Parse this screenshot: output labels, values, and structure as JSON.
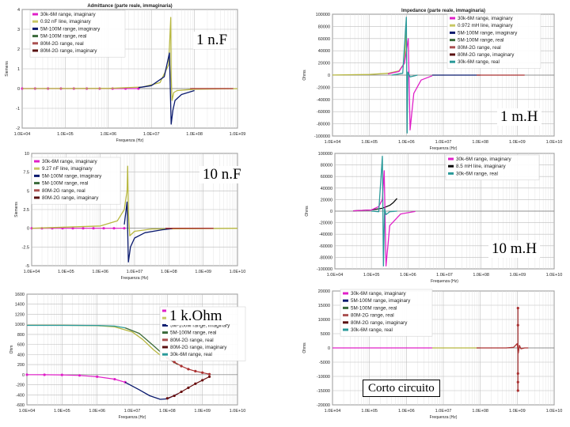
{
  "labels": {
    "cap1": "1 n.F",
    "ind1": "1 m.H",
    "cap10": "10 n.F",
    "ind10": "10 m.H",
    "res1k": "1 k.Ohm",
    "short": "Corto circuito"
  },
  "chart_data": [
    {
      "id": "c1",
      "type": "line",
      "title": "Admittance (parte reale, immaginaria)",
      "xlabel": "Frequenza (Hz)",
      "ylabel": "Siemens",
      "xticks": [
        "1.0E+04",
        "1.0E+05",
        "1.0E+06",
        "1.0E+07",
        "1.0E+08",
        "1.0E+09"
      ],
      "xlog": [
        4,
        9
      ],
      "yticks": [
        "4",
        "3",
        "2",
        "1",
        "0",
        "-1",
        "-2"
      ],
      "ylim": [
        -2,
        4
      ],
      "legend": [
        "30k-6M range, imaginary",
        "0.92 nF line, imaginary",
        "5M-100M range, imaginary",
        "5M-100M range, real",
        "80M-2G range, real",
        "80M-2G range, imaginary"
      ],
      "legend_colors": [
        "#e020c8",
        "#c8c864",
        "#0a1a6e",
        "#3a6a3a",
        "#aa5050",
        "#5a1010"
      ],
      "series": [
        {
          "name": "30k-6M range, imaginary",
          "color": "#e020c8",
          "shape": "dots",
          "x": [
            4,
            4.3,
            4.6,
            4.9,
            5.2,
            5.5,
            5.8,
            6.1,
            6.4,
            6.7
          ],
          "y": [
            0,
            0,
            0,
            0,
            0,
            0,
            0,
            0,
            0,
            0
          ]
        },
        {
          "name": "0.92 nF line, imaginary",
          "color": "#b8b840",
          "x": [
            4,
            6,
            6.8,
            7.2,
            7.4,
            7.45,
            7.46,
            7.48,
            7.52,
            7.6,
            8,
            9
          ],
          "y": [
            0,
            0.01,
            0.08,
            0.3,
            1.2,
            3.6,
            0.6,
            -0.6,
            -0.2,
            -0.1,
            -0.03,
            -0.005
          ]
        },
        {
          "name": "5M-100M range, imaginary",
          "color": "#0a1a6e",
          "x": [
            6.7,
            7,
            7.3,
            7.42,
            7.46,
            7.5,
            7.55,
            7.7,
            8
          ],
          "y": [
            0.05,
            0.15,
            0.6,
            1.8,
            -1.8,
            -1.1,
            -0.6,
            -0.3,
            -0.1
          ]
        },
        {
          "name": "80M-2G range, real",
          "color": "#aa3030",
          "x": [
            7.9,
            8.1,
            8.3,
            8.5,
            8.7,
            8.9
          ],
          "y": [
            0,
            0,
            0,
            0,
            0,
            0
          ]
        }
      ]
    },
    {
      "id": "c2",
      "type": "line",
      "title": "Impedance (parte reale, immaginaria)",
      "xlabel": "Frequenza (Hz)",
      "ylabel": "Ohms",
      "xticks": [
        "1.0E+04",
        "1.0E+05",
        "1.0E+06",
        "1.0E+07",
        "1.0E+08",
        "1.0E+09",
        "1.0E+10"
      ],
      "xlog": [
        4,
        10
      ],
      "yticks": [
        "100000",
        "80000",
        "60000",
        "40000",
        "20000",
        "0",
        "-20000",
        "-40000",
        "-60000",
        "-80000",
        "-100000"
      ],
      "ylim": [
        -100000,
        100000
      ],
      "legend": [
        "30k-6M range, imaginary",
        "0.972 mH line, imaginary",
        "5M-100M range, imaginary",
        "5M-100M range, real",
        "80M-2G range, real",
        "80M-2G range, imaginary",
        "30k-6M range, real"
      ],
      "legend_colors": [
        "#e020c8",
        "#c8c864",
        "#0a1a6e",
        "#3a6a3a",
        "#aa5050",
        "#5a1010",
        "#2a9a9a"
      ],
      "series": [
        {
          "name": "0.972 mH line, imaginary",
          "color": "#b8b840",
          "x": [
            4,
            5,
            5.5,
            5.8,
            5.95,
            6
          ],
          "y": [
            100,
            1000,
            3000,
            7000,
            20000,
            80000
          ]
        },
        {
          "name": "30k-6M range, imaginary",
          "color": "#e020c8",
          "x": [
            5.5,
            5.8,
            5.95,
            6.05,
            6.1,
            6.2,
            6.4,
            6.7
          ],
          "y": [
            2000,
            6000,
            20000,
            60000,
            -90000,
            -30000,
            -8000,
            -1000
          ]
        },
        {
          "name": "30k-6M range, real",
          "color": "#2a9a9a",
          "x": [
            5.6,
            5.9,
            6,
            6.02,
            6.04,
            6.1,
            6.3
          ],
          "y": [
            0,
            3000,
            95000,
            -95000,
            5000,
            -3000,
            0
          ]
        },
        {
          "name": "5M-100M range, imaginary",
          "color": "#0a1a6e",
          "x": [
            6.7,
            7,
            7.5,
            8
          ],
          "y": [
            0,
            0,
            0,
            0
          ]
        },
        {
          "name": "80M-2G range, real",
          "color": "#aa3030",
          "x": [
            7.9,
            8.2,
            8.5,
            8.8,
            9.2
          ],
          "y": [
            0,
            0,
            0,
            0,
            0
          ]
        }
      ]
    },
    {
      "id": "c3",
      "type": "line",
      "title": "",
      "xlabel": "Frequenza (Hz)",
      "ylabel": "Siemens",
      "xticks": [
        "1.0E+04",
        "1.0E+05",
        "1.0E+06",
        "1.0E+07",
        "1.0E+08",
        "1.0E+09",
        "1.0E+10"
      ],
      "xlog": [
        4,
        10
      ],
      "yticks": [
        "10",
        "7.5",
        "5",
        "2.5",
        "0",
        "-2.5",
        "-5"
      ],
      "ylim": [
        -5,
        10
      ],
      "legend": [
        "30k-6M range, imaginary",
        "9.27 nF line, imaginary",
        "5M-100M range, imaginary",
        "5M-100M range, real",
        "80M-2G range, real",
        "80M-2G range, imaginary"
      ],
      "legend_colors": [
        "#e020c8",
        "#c8c864",
        "#0a1a6e",
        "#3a6a3a",
        "#aa5050",
        "#5a1010"
      ],
      "series": [
        {
          "name": "30k-6M range, imaginary",
          "color": "#e020c8",
          "shape": "dots",
          "x": [
            4,
            4.3,
            4.6,
            4.9,
            5.2,
            5.5,
            5.8,
            6.1,
            6.4,
            6.7
          ],
          "y": [
            0,
            0,
            0,
            0,
            0,
            0,
            0,
            0,
            0,
            0
          ]
        },
        {
          "name": "9.27 nF line, imaginary",
          "color": "#b8b840",
          "x": [
            4,
            6,
            6.5,
            6.7,
            6.78,
            6.8,
            6.82,
            6.86,
            7,
            7.5,
            10
          ],
          "y": [
            0,
            0.3,
            1,
            2.5,
            5,
            8.3,
            2,
            -1,
            -0.4,
            -0.1,
            0
          ]
        },
        {
          "name": "5M-100M range, imaginary",
          "color": "#0a1a6e",
          "x": [
            6.7,
            6.78,
            6.82,
            6.88,
            7,
            7.3,
            7.8,
            8.1
          ],
          "y": [
            0.5,
            3.5,
            -4.5,
            -2.5,
            -1.3,
            -0.6,
            -0.2,
            -0.05
          ]
        },
        {
          "name": "80M-2G range, real",
          "color": "#aa3030",
          "x": [
            7.9,
            8.2,
            8.5,
            8.8,
            9.1,
            9.3
          ],
          "y": [
            0,
            0,
            0,
            0,
            0,
            0
          ]
        }
      ]
    },
    {
      "id": "c4",
      "type": "line",
      "title": "",
      "xlabel": "Frequenza (Hz)",
      "ylabel": "Ohms",
      "xticks": [
        "1.0E+04",
        "1.0E+05",
        "1.0E+06",
        "1.0E+07",
        "1.0E+08",
        "1.0E+09",
        "1.0E+10"
      ],
      "xlog": [
        4,
        10
      ],
      "yticks": [
        "100000",
        "80000",
        "60000",
        "40000",
        "20000",
        "0",
        "-20000",
        "-40000",
        "-60000",
        "-80000",
        "-100000"
      ],
      "ylim": [
        -100000,
        100000
      ],
      "legend": [
        "30k-6M range, imaginary",
        "8.5 mH line, imaginary",
        "30k-6M range, real"
      ],
      "legend_colors": [
        "#e020c8",
        "#0a0a0a",
        "#2a9a9a"
      ],
      "series": [
        {
          "name": "8.5 mH line, imaginary",
          "color": "#0a0a0a",
          "x": [
            4.5,
            5,
            5.3,
            5.5,
            5.6,
            5.7
          ],
          "y": [
            500,
            2000,
            5000,
            10000,
            15000,
            22000
          ]
        },
        {
          "name": "30k-6M range, imaginary",
          "color": "#e020c8",
          "x": [
            4.5,
            5,
            5.2,
            5.3,
            5.35,
            5.4,
            5.5,
            5.8,
            6.2
          ],
          "y": [
            500,
            2000,
            8000,
            20000,
            70000,
            -95000,
            -25000,
            -5000,
            -500
          ]
        },
        {
          "name": "30k-6M range, real",
          "color": "#2a9a9a",
          "x": [
            5,
            5.2,
            5.3,
            5.33,
            5.36,
            5.4,
            5.5,
            5.7
          ],
          "y": [
            0,
            -1000,
            95000,
            -95000,
            4000,
            -6000,
            -1000,
            0
          ]
        }
      ]
    },
    {
      "id": "c5",
      "type": "line",
      "title": "",
      "xlabel": "Frequenza (Hz)",
      "ylabel": "Ohm",
      "xticks": [
        "1.0E+04",
        "1.0E+05",
        "1.0E+06",
        "1.0E+07",
        "1.0E+08",
        "1.0E+09",
        "1.0E+10"
      ],
      "xlog": [
        4,
        10
      ],
      "yticks": [
        "1600",
        "1400",
        "1200",
        "1000",
        "800",
        "600",
        "400",
        "200",
        "0",
        "-200",
        "-400",
        "-600"
      ],
      "ylim": [
        -600,
        1600
      ],
      "legend": [
        "30k-6M range, imaginary",
        "981 ohm line, real",
        "5M-100M range, imaginary",
        "5M-100M range, real",
        "80M-2G range, real",
        "80M-2G range, imaginary",
        "30k-6M range, real"
      ],
      "legend_colors": [
        "#e020c8",
        "#c8c864",
        "#0a1a6e",
        "#3a6a3a",
        "#aa5050",
        "#5a1010",
        "#2a9a9a"
      ],
      "series": [
        {
          "name": "981 ohm line, real",
          "color": "#b8b840",
          "x": [
            4,
            5,
            6,
            6.5,
            7,
            7.3,
            7.6,
            7.9
          ],
          "y": [
            981,
            981,
            975,
            950,
            850,
            700,
            500,
            330
          ]
        },
        {
          "name": "30k-6M range, real",
          "color": "#2a9a9a",
          "x": [
            4,
            5,
            6,
            6.5,
            6.8
          ],
          "y": [
            980,
            980,
            978,
            965,
            930
          ]
        },
        {
          "name": "30k-6M range, imaginary",
          "color": "#e020c8",
          "shape": "dots",
          "x": [
            4,
            4.5,
            5,
            5.5,
            6,
            6.5,
            6.8
          ],
          "y": [
            0,
            -2,
            -5,
            -15,
            -40,
            -90,
            -150
          ]
        },
        {
          "name": "5M-100M range, imaginary",
          "color": "#0a1a6e",
          "x": [
            6.8,
            7.2,
            7.5,
            7.8,
            8,
            8.3
          ],
          "y": [
            -150,
            -300,
            -420,
            -490,
            -480,
            -380
          ]
        },
        {
          "name": "5M-100M range, real",
          "color": "#3a6a3a",
          "x": [
            6.8,
            7.2,
            7.6,
            8,
            8.3
          ],
          "y": [
            930,
            820,
            580,
            330,
            200
          ]
        },
        {
          "name": "80M-2G range, real",
          "color": "#aa3030",
          "shape": "dots",
          "x": [
            8,
            8.2,
            8.4,
            8.6,
            8.8,
            9,
            9.2
          ],
          "y": [
            330,
            250,
            170,
            110,
            70,
            40,
            10
          ]
        },
        {
          "name": "80M-2G range, imaginary",
          "color": "#6a1010",
          "shape": "dots",
          "x": [
            8,
            8.2,
            8.4,
            8.6,
            8.8,
            9,
            9.2
          ],
          "y": [
            -470,
            -420,
            -340,
            -260,
            -180,
            -110,
            -40
          ]
        }
      ]
    },
    {
      "id": "c6",
      "type": "line",
      "title": "",
      "xlabel": "Frequenza (Hz)",
      "ylabel": "Ohms",
      "xticks": [
        "1.0E+04",
        "1.0E+05",
        "1.0E+06",
        "1.0E+07",
        "1.0E+08",
        "1.0E+09",
        "1.0E+10"
      ],
      "xlog": [
        4,
        10
      ],
      "yticks": [
        "20000",
        "15000",
        "10000",
        "5000",
        "0",
        "-5000",
        "-10000",
        "-15000",
        "-20000"
      ],
      "ylim": [
        -20000,
        20000
      ],
      "legend": [
        "30k-6M range, imaginary",
        "5M-100M range, imaginary",
        "5M-100M range, real",
        "80M-2G range, real",
        "80M-2G range, imaginary",
        "30k-6M range, real"
      ],
      "legend_colors": [
        "#e020c8",
        "#0a1a6e",
        "#3a6a3a",
        "#aa5050",
        "#5a1010",
        "#2a9a9a"
      ],
      "series": [
        {
          "name": "30k-6M range, imaginary",
          "color": "#e020c8",
          "x": [
            4,
            5,
            6,
            6.7
          ],
          "y": [
            0,
            0,
            0,
            0
          ]
        },
        {
          "name": "5M-100M range, real",
          "color": "#b8b840",
          "x": [
            6.7,
            7.2,
            7.7,
            8
          ],
          "y": [
            0,
            0,
            0,
            0
          ]
        },
        {
          "name": "80M-2G range, real",
          "color": "#aa3030",
          "x": [
            7.9,
            8.3,
            8.7,
            8.9,
            9,
            9.03,
            9.06,
            9.1,
            9.2,
            9.3
          ],
          "y": [
            0,
            0,
            0,
            200,
            1500,
            -1800,
            900,
            -300,
            0,
            0
          ]
        },
        {
          "name": "80M-2G range, imaginary",
          "color": "#aa3030",
          "shape": "dots",
          "x": [
            9.02,
            9.02,
            9.02,
            9.02,
            9.02
          ],
          "y": [
            14000,
            8000,
            -9000,
            -12000,
            -15000
          ]
        }
      ]
    }
  ]
}
